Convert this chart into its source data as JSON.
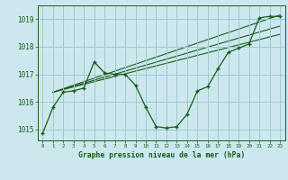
{
  "title": "Graphe pression niveau de la mer (hPa)",
  "bg_color": "#cce8ee",
  "grid_color": "#a0c8d0",
  "line_color": "#1a5c1a",
  "xlim": [
    -0.5,
    23.5
  ],
  "ylim": [
    1014.6,
    1019.5
  ],
  "yticks": [
    1015,
    1016,
    1017,
    1018,
    1019
  ],
  "xticks": [
    0,
    1,
    2,
    3,
    4,
    5,
    6,
    7,
    8,
    9,
    10,
    11,
    12,
    13,
    14,
    15,
    16,
    17,
    18,
    19,
    20,
    21,
    22,
    23
  ],
  "main_series": [
    1014.85,
    1015.8,
    1016.35,
    1016.4,
    1016.5,
    1017.45,
    1017.05,
    1017.0,
    1017.0,
    1016.6,
    1015.8,
    1015.1,
    1015.05,
    1015.1,
    1015.55,
    1016.4,
    1016.55,
    1017.2,
    1017.8,
    1017.95,
    1018.1,
    1019.05,
    1019.1,
    1019.1
  ],
  "trend_lines": [
    {
      "x0": 1,
      "y0": 1016.35,
      "x1": 23,
      "y1": 1019.15
    },
    {
      "x0": 1,
      "y0": 1016.35,
      "x1": 23,
      "y1": 1018.75
    },
    {
      "x0": 1,
      "y0": 1016.35,
      "x1": 23,
      "y1": 1018.45
    }
  ]
}
